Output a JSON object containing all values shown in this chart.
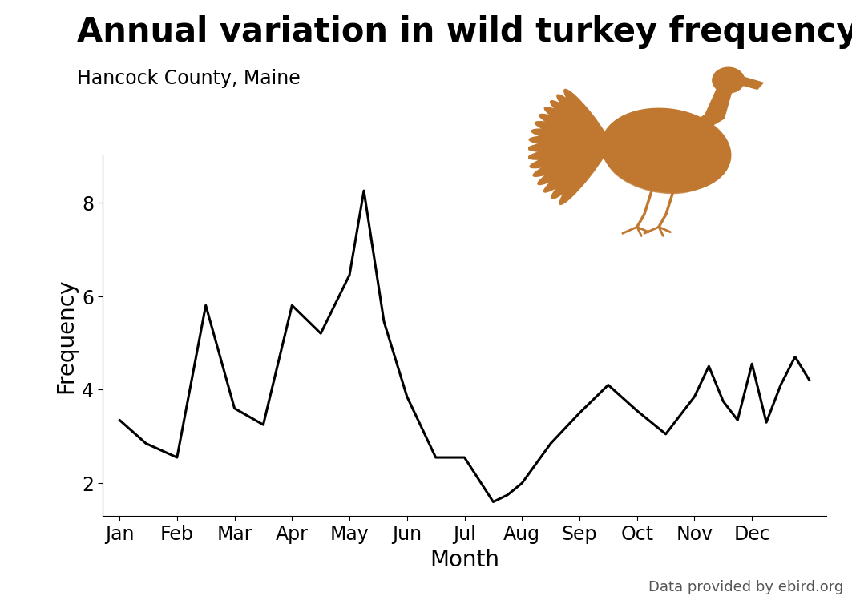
{
  "title": "Annual variation in wild turkey frequency",
  "subtitle": "Hancock County, Maine",
  "xlabel": "Month",
  "ylabel": "Frequency",
  "line_color": "#000000",
  "line_width": 2.2,
  "background_color": "#ffffff",
  "watermark": "Data provided by ebird.org",
  "ylim": [
    1.3,
    9.0
  ],
  "yticks": [
    2,
    4,
    6,
    8
  ],
  "x_values": [
    0.0,
    0.46,
    1.0,
    1.5,
    2.0,
    2.5,
    3.0,
    3.5,
    4.0,
    4.25,
    4.6,
    5.0,
    5.5,
    6.0,
    6.5,
    6.75,
    7.0,
    7.5,
    8.0,
    8.5,
    9.0,
    9.5,
    10.0,
    10.25,
    10.5,
    10.75,
    11.0,
    11.25,
    11.5,
    11.75,
    12.0
  ],
  "y_values": [
    3.35,
    2.85,
    2.55,
    5.8,
    3.6,
    3.25,
    5.8,
    5.2,
    6.45,
    8.25,
    5.45,
    3.85,
    2.55,
    2.55,
    1.6,
    1.75,
    2.0,
    2.85,
    3.5,
    4.1,
    3.55,
    3.05,
    3.85,
    4.5,
    3.75,
    3.35,
    4.55,
    3.3,
    4.1,
    4.7,
    4.2
  ],
  "month_labels": [
    "Jan",
    "Feb",
    "Mar",
    "Apr",
    "May",
    "Jun",
    "Jul",
    "Aug",
    "Sep",
    "Oct",
    "Nov",
    "Dec"
  ],
  "month_positions": [
    0,
    1,
    2,
    3,
    4,
    5,
    6,
    7,
    8,
    9,
    10,
    11
  ],
  "title_fontsize": 30,
  "subtitle_fontsize": 17,
  "axis_label_fontsize": 20,
  "tick_fontsize": 17,
  "watermark_fontsize": 13,
  "turkey_color": "#C07830"
}
